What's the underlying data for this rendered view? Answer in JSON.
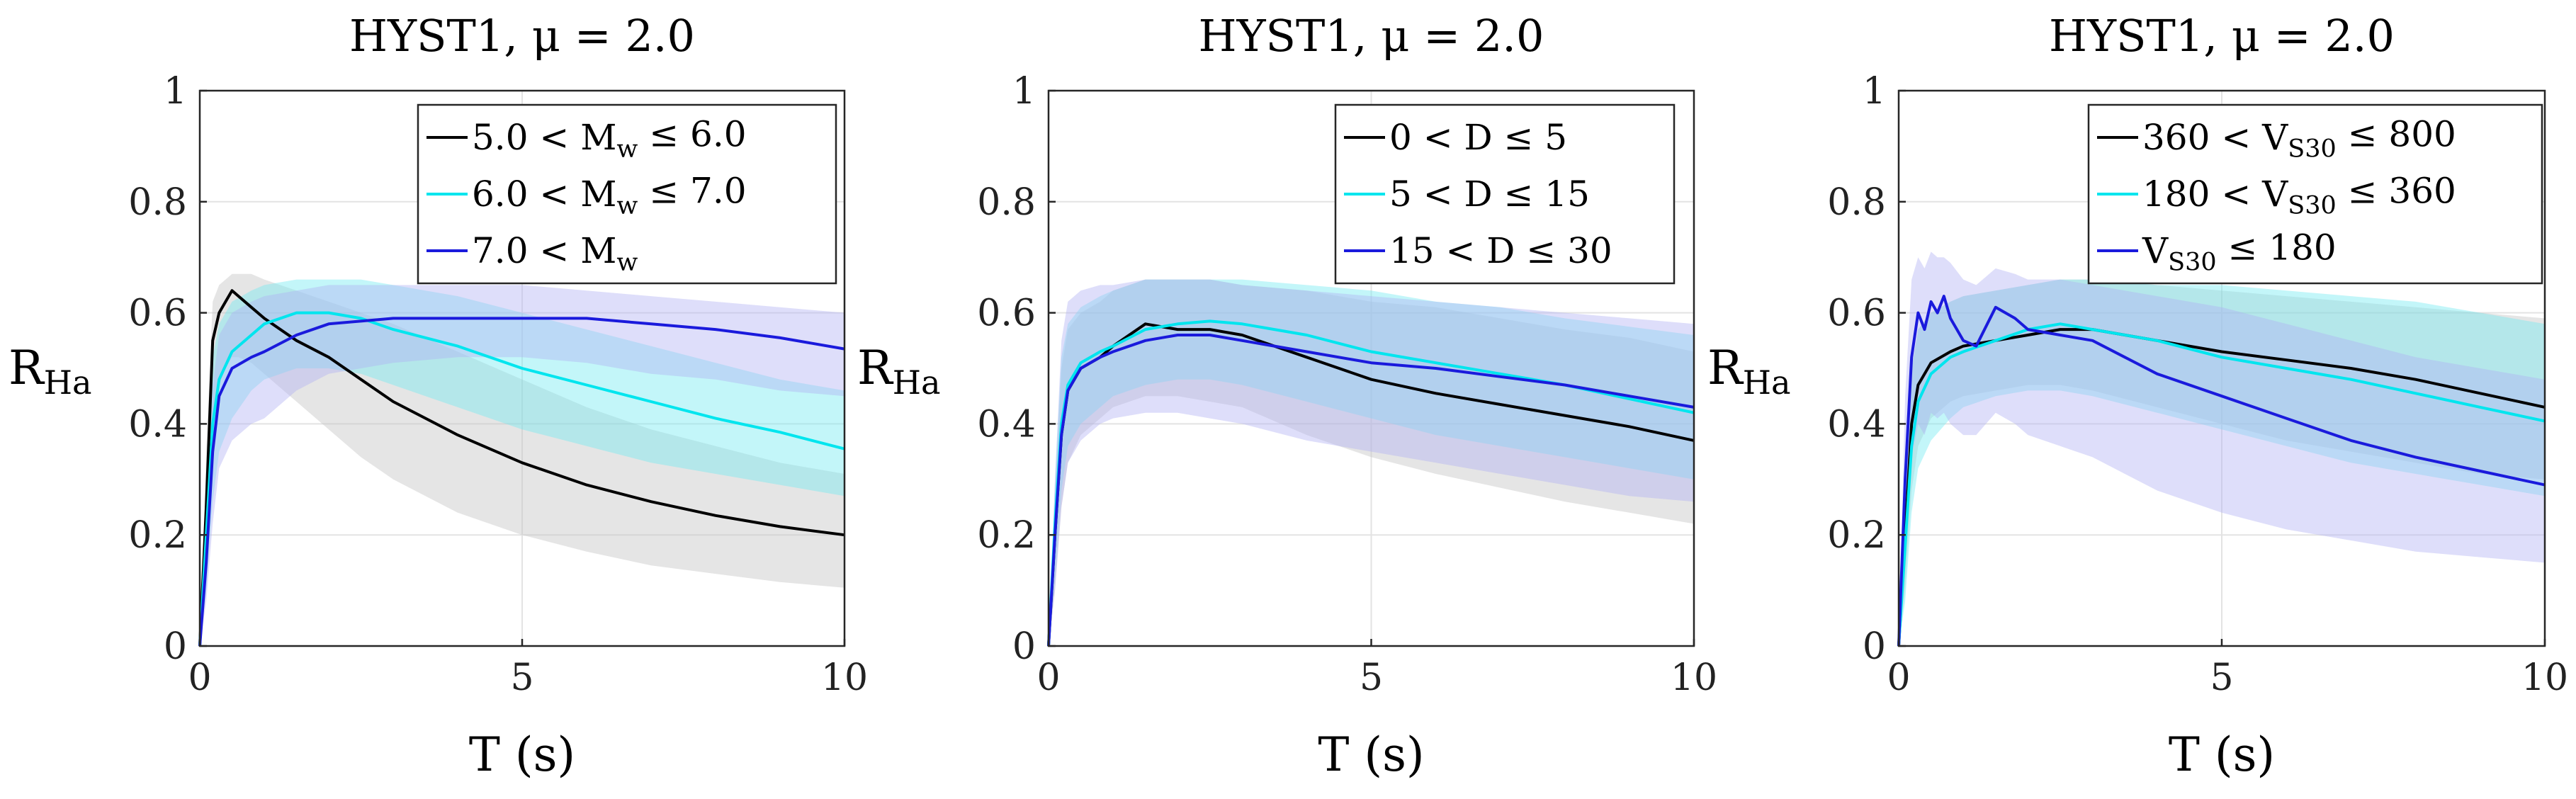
{
  "chart_data": [
    {
      "type": "line",
      "title": "HYST1, μ = 2.0",
      "xlabel": "T (s)",
      "ylabel": "R_Ha",
      "xlim": [
        0,
        10
      ],
      "ylim": [
        0,
        1
      ],
      "xticks": [
        "0",
        "5",
        "10"
      ],
      "yticks": [
        "0",
        "0.2",
        "0.4",
        "0.6",
        "0.8",
        "1"
      ],
      "grid": true,
      "legend_position": "top-right",
      "series": [
        {
          "name": "5.0 < M_w ≤ 6.0",
          "color": "#000000",
          "band_color": "#c0c0c0",
          "x": [
            0,
            0.1,
            0.2,
            0.3,
            0.4,
            0.5,
            0.6,
            0.8,
            1.0,
            1.5,
            2.0,
            2.5,
            3.0,
            4.0,
            5.0,
            6.0,
            7.0,
            8.0,
            9.0,
            10.0
          ],
          "y": [
            0,
            0.25,
            0.55,
            0.6,
            0.62,
            0.64,
            0.63,
            0.61,
            0.59,
            0.55,
            0.52,
            0.48,
            0.44,
            0.38,
            0.33,
            0.29,
            0.26,
            0.235,
            0.215,
            0.2
          ],
          "lower": [
            0,
            0.15,
            0.4,
            0.47,
            0.5,
            0.52,
            0.52,
            0.51,
            0.49,
            0.44,
            0.39,
            0.34,
            0.3,
            0.24,
            0.2,
            0.17,
            0.145,
            0.13,
            0.115,
            0.105
          ],
          "upper": [
            0,
            0.35,
            0.62,
            0.65,
            0.66,
            0.67,
            0.67,
            0.67,
            0.66,
            0.64,
            0.62,
            0.6,
            0.58,
            0.53,
            0.48,
            0.43,
            0.39,
            0.36,
            0.33,
            0.31
          ]
        },
        {
          "name": "6.0 < M_w ≤ 7.0",
          "color": "#00e5ee",
          "band_color": "#6fe9f0",
          "x": [
            0,
            0.1,
            0.2,
            0.3,
            0.5,
            0.8,
            1.0,
            1.5,
            2.0,
            2.5,
            3.0,
            4.0,
            5.0,
            6.0,
            7.0,
            8.0,
            9.0,
            10.0
          ],
          "y": [
            0,
            0.2,
            0.4,
            0.48,
            0.53,
            0.56,
            0.58,
            0.6,
            0.6,
            0.59,
            0.57,
            0.54,
            0.5,
            0.47,
            0.44,
            0.41,
            0.385,
            0.355
          ],
          "lower": [
            0,
            0.1,
            0.26,
            0.35,
            0.41,
            0.46,
            0.48,
            0.5,
            0.5,
            0.49,
            0.47,
            0.43,
            0.39,
            0.36,
            0.33,
            0.31,
            0.29,
            0.27
          ],
          "upper": [
            0,
            0.28,
            0.52,
            0.58,
            0.62,
            0.64,
            0.65,
            0.66,
            0.66,
            0.66,
            0.65,
            0.63,
            0.6,
            0.57,
            0.54,
            0.51,
            0.48,
            0.46
          ]
        },
        {
          "name": "7.0 < M_w",
          "color": "#1a1adc",
          "band_color": "#b0b0f4",
          "x": [
            0,
            0.1,
            0.2,
            0.3,
            0.5,
            0.8,
            1.0,
            1.5,
            2.0,
            3.0,
            4.0,
            5.0,
            6.0,
            7.0,
            8.0,
            9.0,
            10.0
          ],
          "y": [
            0,
            0.15,
            0.35,
            0.45,
            0.5,
            0.52,
            0.53,
            0.56,
            0.58,
            0.59,
            0.59,
            0.59,
            0.59,
            0.58,
            0.57,
            0.555,
            0.535
          ],
          "lower": [
            0,
            0.08,
            0.22,
            0.32,
            0.37,
            0.4,
            0.41,
            0.46,
            0.49,
            0.51,
            0.52,
            0.52,
            0.51,
            0.49,
            0.48,
            0.46,
            0.45
          ],
          "upper": [
            0,
            0.25,
            0.47,
            0.56,
            0.6,
            0.62,
            0.63,
            0.64,
            0.65,
            0.65,
            0.65,
            0.65,
            0.64,
            0.63,
            0.62,
            0.61,
            0.6
          ]
        }
      ]
    },
    {
      "type": "line",
      "title": "HYST1, μ = 2.0",
      "xlabel": "T (s)",
      "ylabel": "R_Ha",
      "xlim": [
        0,
        10
      ],
      "ylim": [
        0,
        1
      ],
      "xticks": [
        "0",
        "5",
        "10"
      ],
      "yticks": [
        "0",
        "0.2",
        "0.4",
        "0.6",
        "0.8",
        "1"
      ],
      "grid": true,
      "legend_position": "top-right",
      "series": [
        {
          "name": "0 < D ≤ 5",
          "color": "#000000",
          "band_color": "#c0c0c0",
          "x": [
            0,
            0.1,
            0.2,
            0.3,
            0.5,
            0.8,
            1.0,
            1.5,
            2.0,
            2.5,
            3.0,
            4.0,
            5.0,
            6.0,
            7.0,
            8.0,
            9.0,
            10.0
          ],
          "y": [
            0,
            0.2,
            0.38,
            0.46,
            0.5,
            0.52,
            0.54,
            0.58,
            0.57,
            0.57,
            0.56,
            0.52,
            0.48,
            0.455,
            0.435,
            0.415,
            0.395,
            0.37
          ],
          "lower": [
            0,
            0.1,
            0.25,
            0.33,
            0.38,
            0.41,
            0.43,
            0.45,
            0.45,
            0.44,
            0.43,
            0.38,
            0.34,
            0.31,
            0.285,
            0.26,
            0.24,
            0.22
          ],
          "upper": [
            0,
            0.28,
            0.5,
            0.57,
            0.6,
            0.62,
            0.64,
            0.66,
            0.66,
            0.66,
            0.65,
            0.64,
            0.62,
            0.61,
            0.59,
            0.57,
            0.555,
            0.53
          ]
        },
        {
          "name": "5 < D ≤ 15",
          "color": "#00e5ee",
          "band_color": "#6fe9f0",
          "x": [
            0,
            0.1,
            0.2,
            0.3,
            0.5,
            0.8,
            1.0,
            1.5,
            2.0,
            2.5,
            3.0,
            4.0,
            5.0,
            6.0,
            7.0,
            8.0,
            9.0,
            10.0
          ],
          "y": [
            0,
            0.22,
            0.4,
            0.47,
            0.51,
            0.53,
            0.54,
            0.57,
            0.58,
            0.585,
            0.58,
            0.56,
            0.53,
            0.51,
            0.49,
            0.47,
            0.445,
            0.42
          ],
          "lower": [
            0,
            0.12,
            0.28,
            0.36,
            0.4,
            0.43,
            0.45,
            0.47,
            0.48,
            0.48,
            0.47,
            0.44,
            0.41,
            0.38,
            0.36,
            0.34,
            0.32,
            0.3
          ],
          "upper": [
            0,
            0.3,
            0.52,
            0.58,
            0.61,
            0.63,
            0.64,
            0.66,
            0.66,
            0.66,
            0.66,
            0.65,
            0.64,
            0.62,
            0.61,
            0.59,
            0.575,
            0.56
          ]
        },
        {
          "name": "15 < D ≤ 30",
          "color": "#1a1adc",
          "band_color": "#b0b0f4",
          "x": [
            0,
            0.1,
            0.2,
            0.3,
            0.5,
            0.8,
            1.0,
            1.5,
            2.0,
            2.5,
            3.0,
            4.0,
            5.0,
            6.0,
            7.0,
            8.0,
            9.0,
            10.0
          ],
          "y": [
            0,
            0.2,
            0.38,
            0.46,
            0.5,
            0.52,
            0.53,
            0.55,
            0.56,
            0.56,
            0.55,
            0.53,
            0.51,
            0.5,
            0.485,
            0.47,
            0.45,
            0.43
          ],
          "lower": [
            0,
            0.1,
            0.25,
            0.33,
            0.37,
            0.4,
            0.41,
            0.42,
            0.42,
            0.41,
            0.4,
            0.37,
            0.35,
            0.33,
            0.31,
            0.29,
            0.27,
            0.26
          ],
          "upper": [
            0,
            0.3,
            0.55,
            0.62,
            0.64,
            0.65,
            0.65,
            0.66,
            0.66,
            0.66,
            0.65,
            0.64,
            0.63,
            0.62,
            0.61,
            0.6,
            0.59,
            0.58
          ]
        }
      ]
    },
    {
      "type": "line",
      "title": "HYST1, μ = 2.0",
      "xlabel": "T (s)",
      "ylabel": "R_Ha",
      "xlim": [
        0,
        10
      ],
      "ylim": [
        0,
        1
      ],
      "xticks": [
        "0",
        "5",
        "10"
      ],
      "yticks": [
        "0",
        "0.2",
        "0.4",
        "0.6",
        "0.8",
        "1"
      ],
      "grid": true,
      "legend_position": "top-right",
      "series": [
        {
          "name": "360 < V_S30 ≤ 800",
          "color": "#000000",
          "band_color": "#c0c0c0",
          "x": [
            0,
            0.1,
            0.2,
            0.3,
            0.5,
            0.8,
            1.0,
            1.5,
            2.0,
            2.5,
            3.0,
            4.0,
            5.0,
            6.0,
            7.0,
            8.0,
            9.0,
            10.0
          ],
          "y": [
            0,
            0.2,
            0.4,
            0.47,
            0.51,
            0.53,
            0.54,
            0.55,
            0.56,
            0.57,
            0.57,
            0.55,
            0.53,
            0.515,
            0.5,
            0.48,
            0.455,
            0.43
          ],
          "lower": [
            0,
            0.1,
            0.28,
            0.36,
            0.41,
            0.44,
            0.45,
            0.46,
            0.47,
            0.47,
            0.46,
            0.43,
            0.4,
            0.37,
            0.35,
            0.33,
            0.31,
            0.3
          ],
          "upper": [
            0,
            0.28,
            0.5,
            0.57,
            0.6,
            0.62,
            0.63,
            0.64,
            0.65,
            0.66,
            0.66,
            0.65,
            0.64,
            0.63,
            0.62,
            0.61,
            0.6,
            0.59
          ]
        },
        {
          "name": "180 < V_S30 ≤ 360",
          "color": "#00e5ee",
          "band_color": "#6fe9f0",
          "x": [
            0,
            0.1,
            0.2,
            0.3,
            0.5,
            0.8,
            1.0,
            1.5,
            2.0,
            2.5,
            3.0,
            4.0,
            5.0,
            6.0,
            7.0,
            8.0,
            9.0,
            10.0
          ],
          "y": [
            0,
            0.18,
            0.36,
            0.44,
            0.49,
            0.52,
            0.53,
            0.55,
            0.57,
            0.58,
            0.57,
            0.55,
            0.52,
            0.5,
            0.48,
            0.455,
            0.43,
            0.405
          ],
          "lower": [
            0,
            0.08,
            0.24,
            0.32,
            0.37,
            0.41,
            0.43,
            0.45,
            0.46,
            0.46,
            0.45,
            0.42,
            0.39,
            0.36,
            0.33,
            0.31,
            0.29,
            0.27
          ],
          "upper": [
            0,
            0.28,
            0.5,
            0.57,
            0.6,
            0.62,
            0.63,
            0.64,
            0.65,
            0.66,
            0.66,
            0.65,
            0.65,
            0.64,
            0.63,
            0.62,
            0.6,
            0.58
          ]
        },
        {
          "name": "V_S30 ≤ 180",
          "color": "#1a1adc",
          "band_color": "#b0b0f4",
          "x": [
            0,
            0.1,
            0.2,
            0.3,
            0.4,
            0.5,
            0.6,
            0.7,
            0.8,
            1.0,
            1.2,
            1.5,
            1.8,
            2.0,
            2.5,
            3.0,
            3.5,
            4.0,
            5.0,
            6.0,
            7.0,
            8.0,
            9.0,
            10.0
          ],
          "y": [
            0,
            0.3,
            0.52,
            0.6,
            0.57,
            0.62,
            0.6,
            0.63,
            0.59,
            0.55,
            0.54,
            0.61,
            0.59,
            0.57,
            0.56,
            0.55,
            0.52,
            0.49,
            0.45,
            0.41,
            0.37,
            0.34,
            0.315,
            0.29
          ],
          "lower": [
            0,
            0.15,
            0.34,
            0.4,
            0.38,
            0.42,
            0.41,
            0.42,
            0.4,
            0.38,
            0.38,
            0.42,
            0.4,
            0.38,
            0.36,
            0.34,
            0.31,
            0.28,
            0.24,
            0.21,
            0.19,
            0.17,
            0.16,
            0.15
          ],
          "upper": [
            0,
            0.45,
            0.66,
            0.7,
            0.68,
            0.71,
            0.7,
            0.7,
            0.69,
            0.66,
            0.65,
            0.68,
            0.67,
            0.66,
            0.66,
            0.65,
            0.64,
            0.63,
            0.61,
            0.58,
            0.55,
            0.52,
            0.5,
            0.48
          ]
        }
      ]
    }
  ]
}
